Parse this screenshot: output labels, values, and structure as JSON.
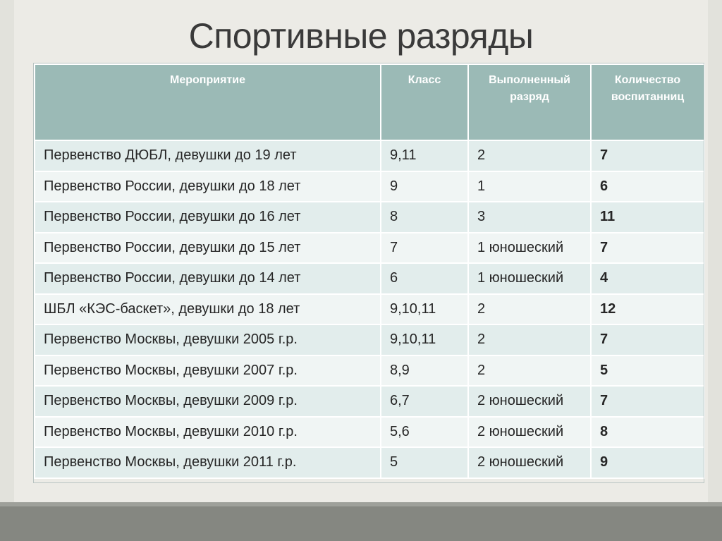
{
  "title": "Спортивные разряды",
  "headers": [
    "Мероприятие",
    "Класс",
    "Выполненный разряд",
    "Количество воспитанниц"
  ],
  "rows": [
    {
      "event": "Первенство ДЮБЛ, девушки до 19 лет",
      "class": "9,11",
      "rank": "2",
      "count": "7"
    },
    {
      "event": "Первенство России, девушки до 18 лет",
      "class": "9",
      "rank": "1",
      "count": "6"
    },
    {
      "event": "Первенство России, девушки до 16 лет",
      "class": "8",
      "rank": "3",
      "count": "11"
    },
    {
      "event": "Первенство России, девушки до 15 лет",
      "class": "7",
      "rank": "1 юношеский",
      "count": "7"
    },
    {
      "event": "Первенство России, девушки до 14 лет",
      "class": "6",
      "rank": "1 юношеский",
      "count": "4"
    },
    {
      "event": "ШБЛ «КЭС-баскет», девушки до 18 лет",
      "class": "9,10,11",
      "rank": "2",
      "count": "12"
    },
    {
      "event": "Первенство Москвы, девушки 2005 г.р.",
      "class": "9,10,11",
      "rank": "2",
      "count": "7"
    },
    {
      "event": "Первенство Москвы, девушки 2007 г.р.",
      "class": "8,9",
      "rank": "2",
      "count": "5"
    },
    {
      "event": "Первенство Москвы, девушки 2009 г.р.",
      "class": "6,7",
      "rank": "2 юношеский",
      "count": "7"
    },
    {
      "event": "Первенство Москвы, девушки 2010 г.р.",
      "class": "5,6",
      "rank": "2 юношеский",
      "count": "8"
    },
    {
      "event": "Первенство Москвы, девушки 2011 г.р.",
      "class": "5",
      "rank": "2 юношеский",
      "count": "9"
    }
  ],
  "colors": {
    "header_bg": "#9bbab6",
    "row_odd": "#e2edec",
    "row_even": "#f0f5f4",
    "bottom_band": "#858781"
  }
}
